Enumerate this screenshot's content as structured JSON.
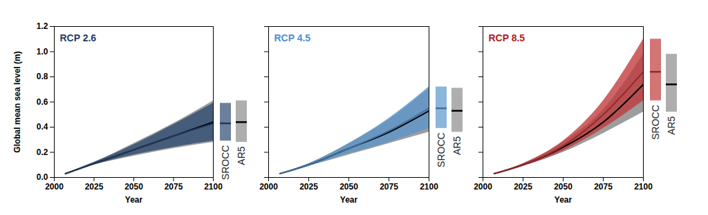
{
  "chart_data": [
    {
      "type": "line",
      "title": "RCP 2.6",
      "color": "#1d3d6e",
      "xlabel": "Year",
      "ylabel": "Global mean sea level (m)",
      "x": [
        2007,
        2025,
        2050,
        2075,
        2100
      ],
      "xlim": [
        2000,
        2100
      ],
      "xticks": [
        2000,
        2025,
        2050,
        2075,
        2100
      ],
      "ylim": [
        0,
        1.2
      ],
      "yticks": [
        {
          "value": 0,
          "label": "0.0"
        },
        {
          "value": 0.2,
          "label": "0.2"
        },
        {
          "value": 0.4,
          "label": "0.4"
        },
        {
          "value": 0.6,
          "label": "0.6"
        },
        {
          "value": 0.8,
          "label": "0.8"
        },
        {
          "value": 1.0,
          "label": "1.0"
        },
        {
          "value": 1.2,
          "label": "1.2"
        }
      ],
      "series": [
        {
          "name": "SROCC",
          "color": "#2e4a72",
          "values": [
            0.03,
            0.11,
            0.22,
            0.33,
            0.43
          ],
          "lower": [
            0.03,
            0.1,
            0.18,
            0.24,
            0.29
          ],
          "upper": [
            0.03,
            0.12,
            0.26,
            0.42,
            0.59
          ],
          "bar_low": 0.29,
          "bar_median": 0.43,
          "bar_high": 0.59
        },
        {
          "name": "AR5",
          "color": "#8c8c8c",
          "values": [
            0.03,
            0.11,
            0.22,
            0.33,
            0.44
          ],
          "lower": [
            0.03,
            0.1,
            0.17,
            0.23,
            0.28
          ],
          "upper": [
            0.03,
            0.12,
            0.27,
            0.43,
            0.61
          ],
          "bar_low": 0.28,
          "bar_median": 0.44,
          "bar_high": 0.61
        }
      ]
    },
    {
      "type": "line",
      "title": "RCP 4.5",
      "color": "#4a90d0",
      "xlabel": "Year",
      "tick_labels": "x",
      "x": [
        2007,
        2025,
        2050,
        2075,
        2100
      ],
      "xlim": [
        2000,
        2100
      ],
      "xticks": [
        2000,
        2025,
        2050,
        2075,
        2100
      ],
      "ylim": [
        0,
        1.2
      ],
      "yticks": [
        {
          "value": 0,
          "label": "0.0"
        },
        {
          "value": 0.2,
          "label": "0.2"
        },
        {
          "value": 0.4,
          "label": "0.4"
        },
        {
          "value": 0.6,
          "label": "0.6"
        },
        {
          "value": 0.8,
          "label": "0.8"
        },
        {
          "value": 1.0,
          "label": "1.0"
        },
        {
          "value": 1.2,
          "label": "1.2"
        }
      ],
      "series": [
        {
          "name": "SROCC",
          "color": "#5b96cc",
          "values": [
            0.03,
            0.1,
            0.23,
            0.37,
            0.55
          ],
          "lower": [
            0.03,
            0.09,
            0.19,
            0.28,
            0.39
          ],
          "upper": [
            0.03,
            0.11,
            0.27,
            0.47,
            0.72
          ],
          "bar_low": 0.39,
          "bar_median": 0.55,
          "bar_high": 0.72
        },
        {
          "name": "AR5",
          "color": "#8c8c8c",
          "values": [
            0.03,
            0.1,
            0.23,
            0.36,
            0.53
          ],
          "lower": [
            0.03,
            0.09,
            0.18,
            0.27,
            0.36
          ],
          "upper": [
            0.03,
            0.11,
            0.27,
            0.46,
            0.71
          ],
          "bar_low": 0.36,
          "bar_median": 0.53,
          "bar_high": 0.71
        }
      ]
    },
    {
      "type": "line",
      "title": "RCP 8.5",
      "color": "#b01c1c",
      "xlabel": "Year",
      "tick_labels": "x",
      "x": [
        2007,
        2025,
        2050,
        2075,
        2100
      ],
      "xlim": [
        2000,
        2100
      ],
      "xticks": [
        2000,
        2025,
        2050,
        2075,
        2100
      ],
      "ylim": [
        0,
        1.2
      ],
      "yticks": [
        {
          "value": 0,
          "label": "0.0"
        },
        {
          "value": 0.2,
          "label": "0.2"
        },
        {
          "value": 0.4,
          "label": "0.4"
        },
        {
          "value": 0.6,
          "label": "0.6"
        },
        {
          "value": 0.8,
          "label": "0.8"
        },
        {
          "value": 1.0,
          "label": "1.0"
        },
        {
          "value": 1.2,
          "label": "1.2"
        }
      ],
      "series": [
        {
          "name": "SROCC",
          "color": "#c0393b",
          "values": [
            0.03,
            0.1,
            0.25,
            0.5,
            0.84
          ],
          "lower": [
            0.03,
            0.09,
            0.21,
            0.39,
            0.61
          ],
          "upper": [
            0.03,
            0.11,
            0.29,
            0.61,
            1.1
          ],
          "bar_low": 0.61,
          "bar_median": 0.84,
          "bar_high": 1.1
        },
        {
          "name": "AR5",
          "color": "#8c8c8c",
          "values": [
            0.03,
            0.1,
            0.24,
            0.44,
            0.74
          ],
          "lower": [
            0.03,
            0.09,
            0.2,
            0.35,
            0.52
          ],
          "upper": [
            0.03,
            0.11,
            0.28,
            0.54,
            0.98
          ],
          "bar_low": 0.52,
          "bar_median": 0.74,
          "bar_high": 0.98
        }
      ]
    }
  ]
}
